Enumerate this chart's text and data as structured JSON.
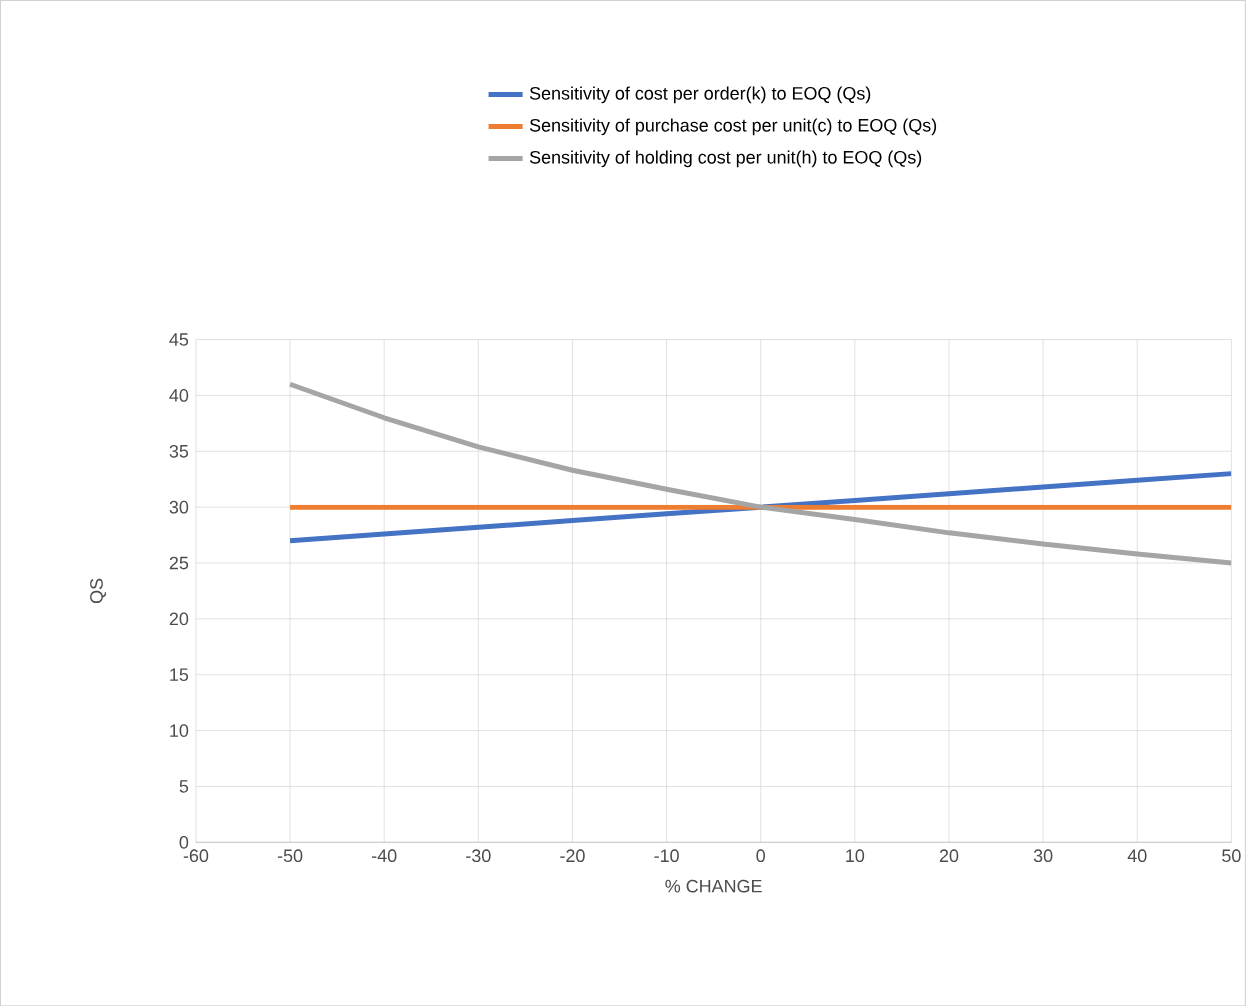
{
  "chart_data": {
    "type": "line",
    "x": [
      -50,
      -40,
      -30,
      -20,
      -10,
      0,
      10,
      20,
      30,
      40,
      50
    ],
    "series": [
      {
        "name": "Sensitivity of cost per order(k) to EOQ (Qs)",
        "color": "#4472c4",
        "values": [
          27.0,
          27.6,
          28.2,
          28.8,
          29.4,
          30.0,
          30.6,
          31.2,
          31.8,
          32.4,
          33.0
        ]
      },
      {
        "name": "Sensitivity of purchase cost per unit(c) to EOQ (Qs)",
        "color": "#ed7d31",
        "values": [
          30,
          30,
          30,
          30,
          30,
          30,
          30,
          30,
          30,
          30,
          30
        ]
      },
      {
        "name": "Sensitivity of holding cost per unit(h) to EOQ (Qs)",
        "color": "#a5a5a5",
        "values": [
          41.0,
          38.0,
          35.4,
          33.3,
          31.6,
          30.0,
          28.9,
          27.7,
          26.7,
          25.8,
          25.0
        ]
      }
    ],
    "xlabel": "% CHANGE",
    "ylabel": "QS",
    "xlim": [
      -60,
      50
    ],
    "xticks": [
      -60,
      -50,
      -40,
      -30,
      -20,
      -10,
      0,
      10,
      20,
      30,
      40,
      50
    ],
    "ylim": [
      0,
      45
    ],
    "yticks": [
      0,
      5,
      10,
      15,
      20,
      25,
      30,
      35,
      40,
      45
    ],
    "grid": true,
    "legend": "top",
    "marker": "none",
    "line_style": "solid"
  }
}
